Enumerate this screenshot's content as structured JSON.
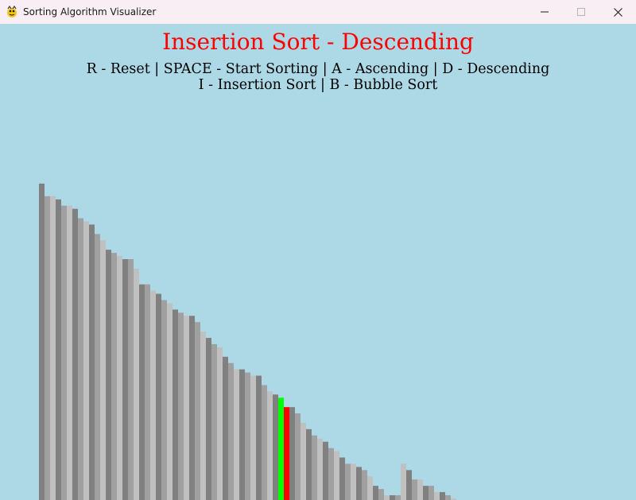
{
  "window": {
    "title": "Sorting Algorithm Visualizer",
    "icon": "pygame-snake-icon",
    "buttons": {
      "minimize_icon": "minimize-icon",
      "maximize_icon": "maximize-icon",
      "close_icon": "close-icon"
    }
  },
  "visualizer": {
    "heading": "Insertion Sort - Descending",
    "controls_line_1": "R - Reset | SPACE - Start Sorting | A - Ascending | D - Descending",
    "controls_line_2": "I - Insertion Sort | B - Bubble Sort",
    "algorithm": "Insertion Sort",
    "order": "Descending",
    "colors": {
      "background": "#add8e6",
      "heading": "#ff0000",
      "bar_dark": "#808080",
      "bar_mid": "#a0a0a0",
      "bar_light": "#c0c0c0",
      "compare": "#00ff00",
      "current": "#ff0000"
    },
    "highlight": {
      "compare_index": 43,
      "current_index": 44
    },
    "values": [
      100,
      96,
      96,
      95,
      93,
      93,
      92,
      89,
      88,
      87,
      84,
      82,
      79,
      78,
      77,
      76,
      76,
      73,
      68,
      68,
      66,
      65,
      63,
      62,
      60,
      59,
      58,
      58,
      56,
      53,
      51,
      49,
      48,
      45,
      43,
      41,
      41,
      40,
      39,
      39,
      36,
      34,
      33,
      32,
      29,
      29,
      27,
      24,
      22,
      20,
      19,
      18,
      16,
      15,
      13,
      11,
      11,
      10,
      9,
      7,
      4,
      3,
      1,
      1,
      1,
      11,
      9,
      6,
      6,
      4,
      4,
      2,
      2,
      1,
      0
    ]
  }
}
